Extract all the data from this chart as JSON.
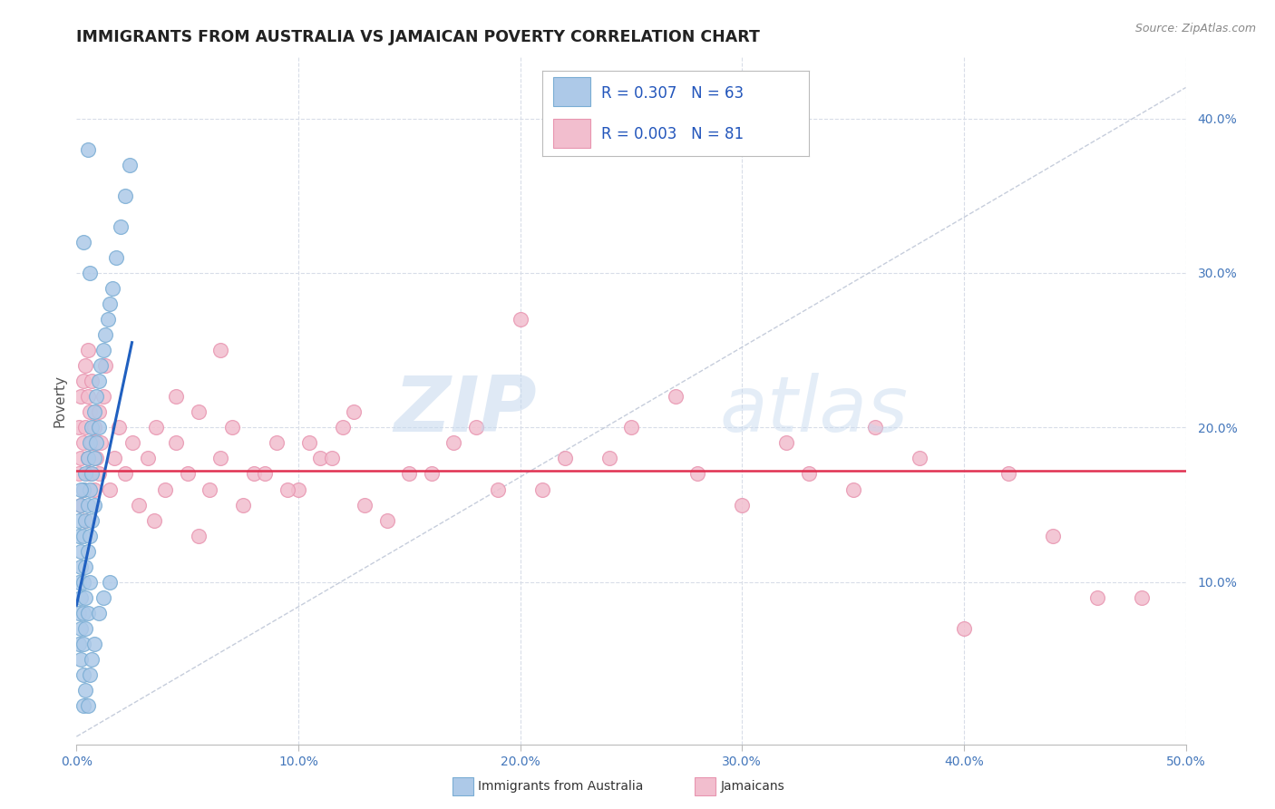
{
  "title": "IMMIGRANTS FROM AUSTRALIA VS JAMAICAN POVERTY CORRELATION CHART",
  "source": "Source: ZipAtlas.com",
  "ylabel": "Poverty",
  "xlim": [
    0.0,
    0.5
  ],
  "ylim": [
    -0.005,
    0.44
  ],
  "xtick_labels": [
    "0.0%",
    "10.0%",
    "20.0%",
    "30.0%",
    "40.0%",
    "50.0%"
  ],
  "xtick_values": [
    0.0,
    0.1,
    0.2,
    0.3,
    0.4,
    0.5
  ],
  "ytick_labels": [
    "10.0%",
    "20.0%",
    "30.0%",
    "40.0%"
  ],
  "ytick_values": [
    0.1,
    0.2,
    0.3,
    0.4
  ],
  "blue_color": "#adc9e8",
  "blue_edge": "#7aadd4",
  "pink_color": "#f2bece",
  "pink_edge": "#e895b0",
  "blue_line_color": "#2060c0",
  "pink_line_color": "#e03050",
  "diag_line_color": "#c0c8d8",
  "grid_color": "#d8dde8",
  "background_color": "#ffffff",
  "watermark_zip": "ZIP",
  "watermark_atlas": "atlas",
  "legend_R1": "R = 0.307",
  "legend_N1": "N = 63",
  "legend_R2": "R = 0.003",
  "legend_N2": "N = 81",
  "blue_x": [
    0.001,
    0.001,
    0.001,
    0.001,
    0.001,
    0.002,
    0.002,
    0.002,
    0.002,
    0.002,
    0.002,
    0.003,
    0.003,
    0.003,
    0.003,
    0.003,
    0.003,
    0.004,
    0.004,
    0.004,
    0.004,
    0.004,
    0.005,
    0.005,
    0.005,
    0.005,
    0.006,
    0.006,
    0.006,
    0.006,
    0.007,
    0.007,
    0.007,
    0.008,
    0.008,
    0.008,
    0.009,
    0.009,
    0.01,
    0.01,
    0.011,
    0.012,
    0.013,
    0.014,
    0.015,
    0.016,
    0.018,
    0.02,
    0.022,
    0.024,
    0.003,
    0.004,
    0.005,
    0.002,
    0.006,
    0.007,
    0.008,
    0.01,
    0.012,
    0.015,
    0.005,
    0.003,
    0.006
  ],
  "blue_y": [
    0.13,
    0.1,
    0.08,
    0.06,
    0.14,
    0.15,
    0.12,
    0.09,
    0.07,
    0.05,
    0.11,
    0.16,
    0.13,
    0.1,
    0.08,
    0.06,
    0.04,
    0.17,
    0.14,
    0.11,
    0.09,
    0.07,
    0.18,
    0.15,
    0.12,
    0.08,
    0.19,
    0.16,
    0.13,
    0.1,
    0.2,
    0.17,
    0.14,
    0.21,
    0.18,
    0.15,
    0.22,
    0.19,
    0.23,
    0.2,
    0.24,
    0.25,
    0.26,
    0.27,
    0.28,
    0.29,
    0.31,
    0.33,
    0.35,
    0.37,
    0.02,
    0.03,
    0.02,
    0.16,
    0.04,
    0.05,
    0.06,
    0.08,
    0.09,
    0.1,
    0.38,
    0.32,
    0.3
  ],
  "pink_x": [
    0.001,
    0.001,
    0.002,
    0.002,
    0.002,
    0.003,
    0.003,
    0.003,
    0.004,
    0.004,
    0.004,
    0.005,
    0.005,
    0.005,
    0.006,
    0.006,
    0.007,
    0.007,
    0.008,
    0.008,
    0.009,
    0.01,
    0.01,
    0.011,
    0.012,
    0.013,
    0.015,
    0.017,
    0.019,
    0.022,
    0.025,
    0.028,
    0.032,
    0.036,
    0.04,
    0.045,
    0.05,
    0.055,
    0.06,
    0.065,
    0.07,
    0.08,
    0.09,
    0.1,
    0.11,
    0.12,
    0.13,
    0.15,
    0.17,
    0.19,
    0.22,
    0.25,
    0.28,
    0.32,
    0.35,
    0.38,
    0.42,
    0.46,
    0.035,
    0.045,
    0.055,
    0.065,
    0.075,
    0.085,
    0.095,
    0.105,
    0.115,
    0.125,
    0.14,
    0.16,
    0.18,
    0.21,
    0.24,
    0.27,
    0.3,
    0.33,
    0.36,
    0.4,
    0.44,
    0.48,
    0.2
  ],
  "pink_y": [
    0.17,
    0.2,
    0.18,
    0.22,
    0.15,
    0.19,
    0.23,
    0.16,
    0.2,
    0.24,
    0.14,
    0.18,
    0.22,
    0.25,
    0.17,
    0.21,
    0.19,
    0.23,
    0.16,
    0.2,
    0.18,
    0.17,
    0.21,
    0.19,
    0.22,
    0.24,
    0.16,
    0.18,
    0.2,
    0.17,
    0.19,
    0.15,
    0.18,
    0.2,
    0.16,
    0.19,
    0.17,
    0.21,
    0.16,
    0.18,
    0.2,
    0.17,
    0.19,
    0.16,
    0.18,
    0.2,
    0.15,
    0.17,
    0.19,
    0.16,
    0.18,
    0.2,
    0.17,
    0.19,
    0.16,
    0.18,
    0.17,
    0.09,
    0.14,
    0.22,
    0.13,
    0.25,
    0.15,
    0.17,
    0.16,
    0.19,
    0.18,
    0.21,
    0.14,
    0.17,
    0.2,
    0.16,
    0.18,
    0.22,
    0.15,
    0.17,
    0.2,
    0.07,
    0.13,
    0.09,
    0.27
  ]
}
